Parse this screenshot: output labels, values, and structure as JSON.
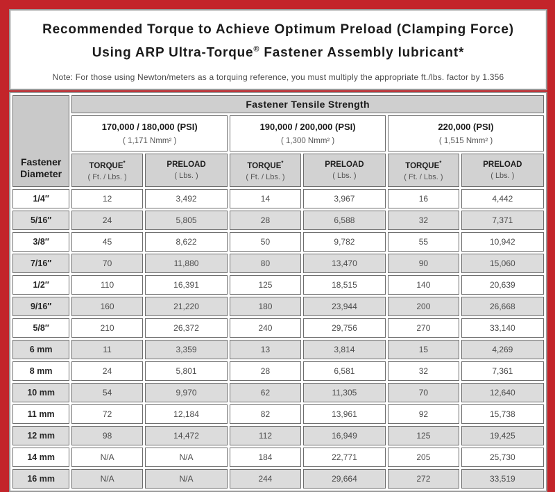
{
  "colors": {
    "border_red": "#c3242a",
    "panel_border_gray": "#9a9a9a",
    "header_gray": "#cfcfcf",
    "alt_row_gray": "#dcdcdc",
    "cell_border_gray": "#6e6e6e"
  },
  "title": {
    "line1": "Recommended Torque to Achieve Optimum Preload (Clamping Force)",
    "line2_pre": "Using ARP Ultra-Torque",
    "line2_sup": "®",
    "line2_post": " Fastener Assembly lubricant*",
    "note": "Note: For those using Newton/meters as a torquing reference, you must multiply the appropriate ft./lbs. factor by 1.356"
  },
  "table": {
    "main_header": "Fastener Tensile Strength",
    "diameter_header_line1": "Fastener",
    "diameter_header_line2": "Diameter",
    "groups": [
      {
        "psi": "170,000 / 180,000 (PSI)",
        "nmm": "( 1,171 Nmm² )"
      },
      {
        "psi": "190,000 / 200,000 (PSI)",
        "nmm": "( 1,300 Nmm² )"
      },
      {
        "psi": "220,000 (PSI)",
        "nmm": "( 1,515 Nmm² )"
      }
    ],
    "sub_headers": {
      "torque_label": "TORQUE",
      "torque_mark": "*",
      "torque_unit": "( Ft. / Lbs. )",
      "preload_label": "PRELOAD",
      "preload_unit": "( Lbs. )"
    },
    "rows": [
      {
        "diameter": "1/4″",
        "values": [
          "12",
          "3,492",
          "14",
          "3,967",
          "16",
          "4,442"
        ]
      },
      {
        "diameter": "5/16″",
        "values": [
          "24",
          "5,805",
          "28",
          "6,588",
          "32",
          "7,371"
        ]
      },
      {
        "diameter": "3/8″",
        "values": [
          "45",
          "8,622",
          "50",
          "9,782",
          "55",
          "10,942"
        ]
      },
      {
        "diameter": "7/16″",
        "values": [
          "70",
          "11,880",
          "80",
          "13,470",
          "90",
          "15,060"
        ]
      },
      {
        "diameter": "1/2″",
        "values": [
          "110",
          "16,391",
          "125",
          "18,515",
          "140",
          "20,639"
        ]
      },
      {
        "diameter": "9/16″",
        "values": [
          "160",
          "21,220",
          "180",
          "23,944",
          "200",
          "26,668"
        ]
      },
      {
        "diameter": "5/8″",
        "values": [
          "210",
          "26,372",
          "240",
          "29,756",
          "270",
          "33,140"
        ]
      },
      {
        "diameter": "6 mm",
        "values": [
          "11",
          "3,359",
          "13",
          "3,814",
          "15",
          "4,269"
        ]
      },
      {
        "diameter": "8 mm",
        "values": [
          "24",
          "5,801",
          "28",
          "6,581",
          "32",
          "7,361"
        ]
      },
      {
        "diameter": "10 mm",
        "values": [
          "54",
          "9,970",
          "62",
          "11,305",
          "70",
          "12,640"
        ]
      },
      {
        "diameter": "11 mm",
        "values": [
          "72",
          "12,184",
          "82",
          "13,961",
          "92",
          "15,738"
        ]
      },
      {
        "diameter": "12 mm",
        "values": [
          "98",
          "14,472",
          "112",
          "16,949",
          "125",
          "19,425"
        ]
      },
      {
        "diameter": "14 mm",
        "values": [
          "N/A",
          "N/A",
          "184",
          "22,771",
          "205",
          "25,730"
        ]
      },
      {
        "diameter": "16 mm",
        "values": [
          "N/A",
          "N/A",
          "244",
          "29,664",
          "272",
          "33,519"
        ]
      }
    ]
  }
}
